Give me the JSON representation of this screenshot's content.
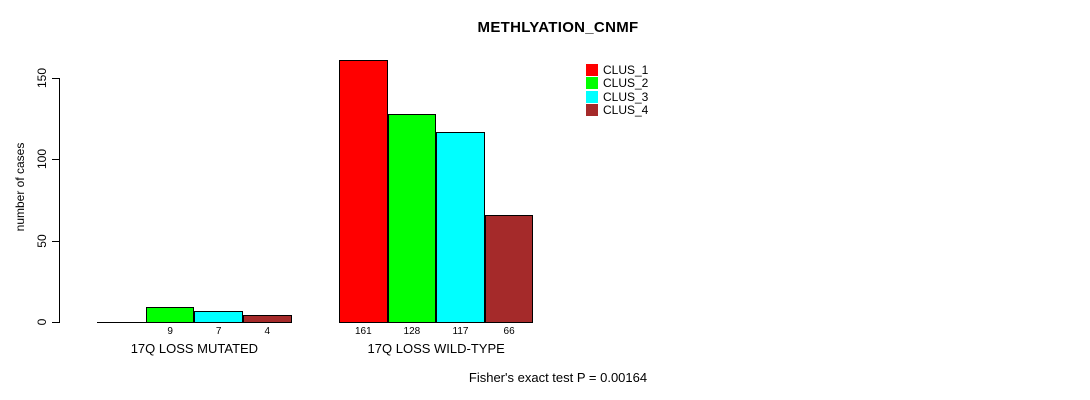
{
  "chart_data": {
    "type": "bar",
    "title": "METHLYATION_CNMF",
    "ylabel": "number of cases",
    "xlabel": "",
    "categories": [
      "17Q LOSS MUTATED",
      "17Q LOSS WILD-TYPE"
    ],
    "series": [
      {
        "name": "CLUS_1",
        "color": "#FF0000",
        "values": [
          0,
          161
        ]
      },
      {
        "name": "CLUS_2",
        "color": "#00FF00",
        "values": [
          9,
          128
        ]
      },
      {
        "name": "CLUS_3",
        "color": "#00FFFF",
        "values": [
          7,
          117
        ]
      },
      {
        "name": "CLUS_4",
        "color": "#A52A2A",
        "values": [
          4,
          66
        ]
      }
    ],
    "bar_labels": [
      [
        "",
        "9",
        "7",
        "4"
      ],
      [
        "161",
        "128",
        "117",
        "66"
      ]
    ],
    "yticks": [
      0,
      50,
      100,
      150
    ],
    "ylim": [
      0,
      165
    ],
    "grid": false,
    "legend_position": "top-right",
    "annotation": "Fisher's exact test P = 0.00164",
    "axis_color": "#000000",
    "background_color": "#ffffff"
  }
}
